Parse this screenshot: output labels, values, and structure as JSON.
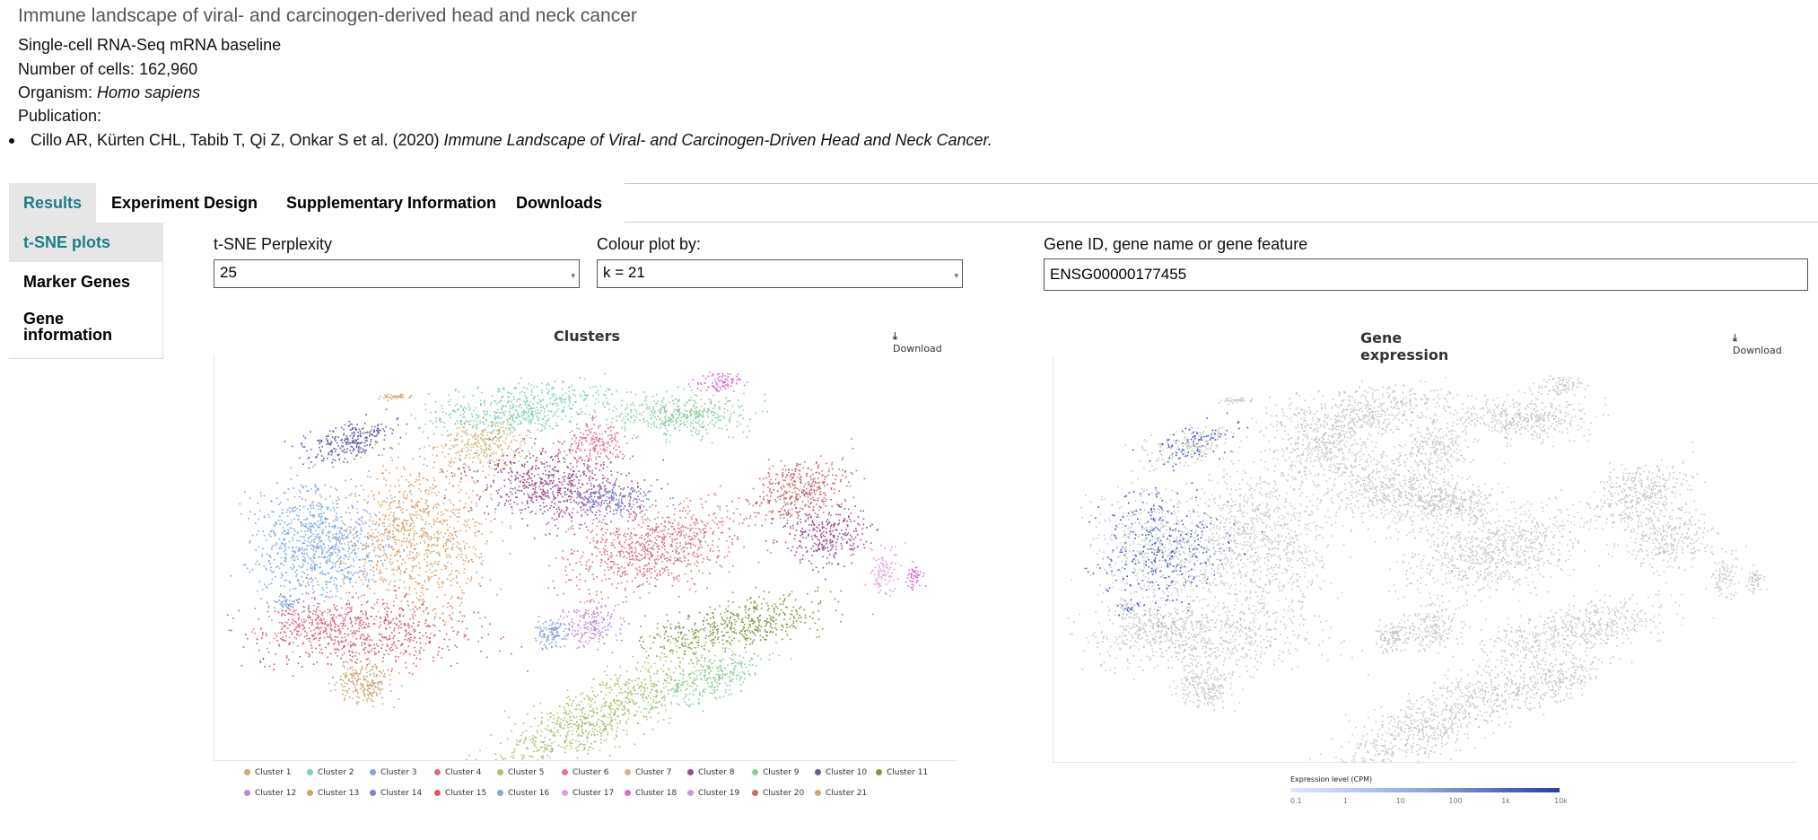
{
  "experiment": {
    "title": "Immune landscape of viral- and carcinogen-derived head and neck cancer",
    "technology": "Single-cell RNA-Seq mRNA baseline",
    "cells_label": "Number of cells:",
    "cells_value": "162,960",
    "organism_label": "Organism:",
    "organism_value": "Homo sapiens",
    "publication_label": "Publication:",
    "publication_authors": "Cillo AR, Kürten CHL, Tabib T, Qi Z, Onkar S et al. (2020)",
    "publication_title": "Immune Landscape of Viral- and Carcinogen-Driven Head and Neck Cancer."
  },
  "tabs": [
    {
      "label": "Results",
      "active": true
    },
    {
      "label": "Experiment Design",
      "active": false
    },
    {
      "label": "Supplementary Information",
      "active": false
    },
    {
      "label": "Downloads",
      "active": false
    }
  ],
  "sidenav": [
    {
      "label": "t-SNE plots",
      "active": true
    },
    {
      "label": "Marker Genes",
      "active": false
    },
    {
      "label": "Gene information",
      "active": false
    }
  ],
  "controls": {
    "perplexity_label": "t-SNE Perplexity",
    "perplexity_value": "25",
    "colour_label": "Colour plot by:",
    "colour_value": "k = 21",
    "gene_label": "Gene ID, gene name or gene feature",
    "gene_value": "ENSG00000177455"
  },
  "clusters_panel": {
    "title": "Clusters",
    "download_label": "Download",
    "download_icon": "download-icon"
  },
  "expression_panel": {
    "title": "Gene expression",
    "download_label": "Download",
    "download_icon": "download-icon",
    "colorbar_title": "Expression level (CPM)",
    "colorbar_ticks": [
      "0.1",
      "1",
      "10",
      "100",
      "1k",
      "10k"
    ],
    "colorbar_colors": [
      "#dfe8f7",
      "#2a3d9e"
    ],
    "background_color": "#c8c8c8",
    "highlight_color": "#3355bb"
  },
  "legend": [
    {
      "label": "Cluster 1",
      "color": "#dba06b"
    },
    {
      "label": "Cluster 2",
      "color": "#7dd1b4"
    },
    {
      "label": "Cluster 3",
      "color": "#7fa9e0"
    },
    {
      "label": "Cluster 4",
      "color": "#d9707a"
    },
    {
      "label": "Cluster 5",
      "color": "#a6c26a"
    },
    {
      "label": "Cluster 6",
      "color": "#e0768f"
    },
    {
      "label": "Cluster 7",
      "color": "#d8b780"
    },
    {
      "label": "Cluster 8",
      "color": "#9c4a8a"
    },
    {
      "label": "Cluster 9",
      "color": "#84d09a"
    },
    {
      "label": "Cluster 10",
      "color": "#5d5fa8"
    },
    {
      "label": "Cluster 11",
      "color": "#7d9a43"
    },
    {
      "label": "Cluster 12",
      "color": "#b98ad9"
    },
    {
      "label": "Cluster 13",
      "color": "#c9a66c"
    },
    {
      "label": "Cluster 14",
      "color": "#7b86cc"
    },
    {
      "label": "Cluster 15",
      "color": "#d05a66"
    },
    {
      "label": "Cluster 16",
      "color": "#8fa3e0"
    },
    {
      "label": "Cluster 17",
      "color": "#e59ad6"
    },
    {
      "label": "Cluster 18",
      "color": "#d96cc9"
    },
    {
      "label": "Cluster 19",
      "color": "#c19be0"
    },
    {
      "label": "Cluster 20",
      "color": "#c96a68"
    },
    {
      "label": "Cluster 21",
      "color": "#d9a565"
    }
  ]
}
